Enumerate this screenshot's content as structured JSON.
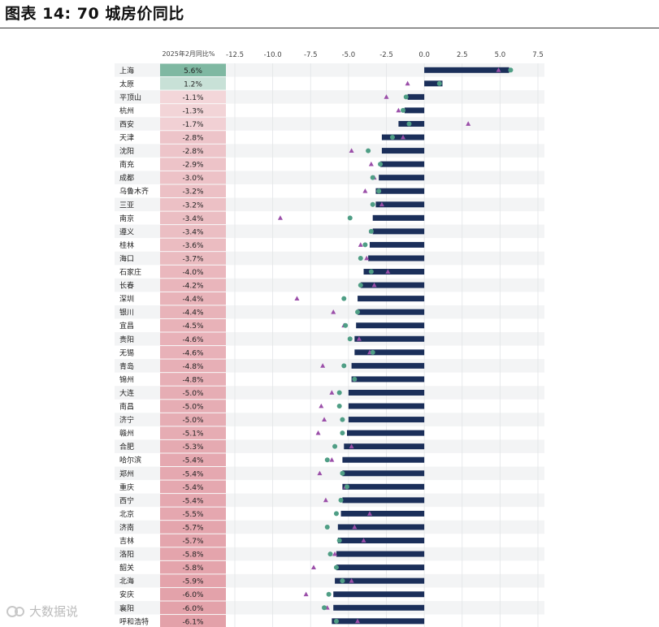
{
  "page_title": "图表 14: 70 城房价同比",
  "watermark": "大数据说",
  "chart_data": {
    "type": "bar",
    "value_column_header": "2025年2月同比%",
    "x_ticks": [
      "-12.5",
      "-10.0",
      "-7.5",
      "-5.0",
      "-2.5",
      "0.0",
      "2.5",
      "5.0",
      "7.5"
    ],
    "xlim": [
      -12.5,
      7.5
    ],
    "grid": true,
    "colors": {
      "bar": "#1b2f5a",
      "circle": "#4f9e85",
      "triangle": "#9b4fa9",
      "cell_positive_strong": "#7fb8a2",
      "cell_positive_light": "#dcece5",
      "cell_negative_light": "#f6e2e4",
      "cell_negative_strong": "#e3a1a9",
      "row_band": "#f3f4f5"
    },
    "categories": [
      "上海",
      "太原",
      "平顶山",
      "杭州",
      "西安",
      "天津",
      "沈阳",
      "南充",
      "成都",
      "乌鲁木齐",
      "三亚",
      "南京",
      "遵义",
      "桂林",
      "海口",
      "石家庄",
      "长春",
      "深圳",
      "银川",
      "宜昌",
      "贵阳",
      "无锡",
      "青岛",
      "锦州",
      "大连",
      "南昌",
      "济宁",
      "赣州",
      "合肥",
      "哈尔滨",
      "郑州",
      "重庆",
      "西宁",
      "北京",
      "济南",
      "吉林",
      "洛阳",
      "韶关",
      "北海",
      "安庆",
      "襄阳",
      "呼和浩特"
    ],
    "value_labels": [
      "5.6%",
      "1.2%",
      "-1.1%",
      "-1.3%",
      "-1.7%",
      "-2.8%",
      "-2.8%",
      "-2.9%",
      "-3.0%",
      "-3.2%",
      "-3.2%",
      "-3.4%",
      "-3.4%",
      "-3.6%",
      "-3.7%",
      "-4.0%",
      "-4.2%",
      "-4.4%",
      "-4.4%",
      "-4.5%",
      "-4.6%",
      "-4.6%",
      "-4.8%",
      "-4.8%",
      "-5.0%",
      "-5.0%",
      "-5.0%",
      "-5.1%",
      "-5.3%",
      "-5.4%",
      "-5.4%",
      "-5.4%",
      "-5.4%",
      "-5.5%",
      "-5.7%",
      "-5.7%",
      "-5.8%",
      "-5.8%",
      "-5.9%",
      "-6.0%",
      "-6.0%",
      "-6.1%"
    ],
    "values": [
      5.6,
      1.2,
      -1.1,
      -1.3,
      -1.7,
      -2.8,
      -2.8,
      -2.9,
      -3.0,
      -3.2,
      -3.2,
      -3.4,
      -3.4,
      -3.6,
      -3.7,
      -4.0,
      -4.2,
      -4.4,
      -4.4,
      -4.5,
      -4.6,
      -4.6,
      -4.8,
      -4.8,
      -5.0,
      -5.0,
      -5.0,
      -5.1,
      -5.3,
      -5.4,
      -5.4,
      -5.4,
      -5.4,
      -5.5,
      -5.7,
      -5.7,
      -5.8,
      -5.8,
      -5.9,
      -6.0,
      -6.0,
      -6.1
    ],
    "circle_values": [
      5.7,
      1.0,
      -1.2,
      -1.4,
      -1.0,
      -2.1,
      -3.7,
      -2.9,
      -3.4,
      -3.0,
      -3.4,
      -4.9,
      -3.5,
      -3.9,
      -4.2,
      -3.5,
      -4.2,
      -5.3,
      -4.4,
      -5.2,
      -4.9,
      -3.4,
      -5.3,
      -4.6,
      -5.6,
      -5.6,
      -5.4,
      -5.4,
      -5.9,
      -6.4,
      -5.4,
      -5.1,
      -5.5,
      -5.8,
      -6.4,
      -5.6,
      -6.2,
      -5.8,
      -5.4,
      -6.3,
      -6.6,
      -5.8
    ],
    "triangle_values": [
      4.9,
      -1.1,
      -2.5,
      -1.7,
      2.9,
      -1.4,
      -4.8,
      -3.5,
      -3.3,
      -3.9,
      -2.8,
      -9.5,
      -3.5,
      -4.2,
      -3.8,
      -2.4,
      -3.3,
      -8.4,
      -6.0,
      -5.3,
      -4.3,
      -3.6,
      -6.7,
      -4.6,
      -6.1,
      -6.8,
      -6.6,
      -7.0,
      -4.8,
      -6.1,
      -6.9,
      -5.2,
      -6.5,
      -3.6,
      -4.6,
      -4.0,
      -5.9,
      -7.3,
      -4.8,
      -7.8,
      -6.4,
      -4.4
    ]
  }
}
